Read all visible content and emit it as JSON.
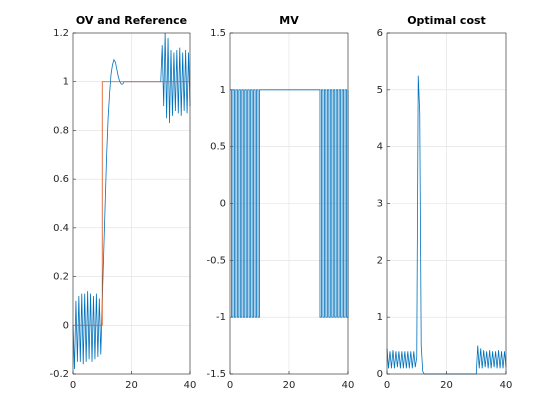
{
  "chart_data": [
    {
      "type": "line",
      "title": "OV and Reference",
      "xlim": [
        0,
        40
      ],
      "xticks": [
        0,
        20,
        40
      ],
      "ylim": [
        -0.2,
        1.2
      ],
      "yticks": [
        -0.2,
        0,
        0.2,
        0.4,
        0.6,
        0.8,
        1,
        1.2
      ],
      "grid": true,
      "series": [
        {
          "name": "OV",
          "color": "#0072bd",
          "x": [
            0,
            0.5,
            1,
            1.5,
            2,
            2.5,
            3,
            3.5,
            4,
            4.5,
            5,
            5.5,
            6,
            6.5,
            7,
            7.5,
            8,
            8.5,
            9,
            9.5,
            10,
            10.5,
            11,
            11.5,
            12,
            12.5,
            13,
            13.5,
            14,
            14.5,
            15,
            15.5,
            16,
            16.5,
            17,
            17.5,
            18,
            18.5,
            19,
            19.5,
            20,
            20.5,
            21,
            21.5,
            22,
            22.5,
            23,
            23.5,
            24,
            24.5,
            25,
            25.5,
            26,
            26.5,
            27,
            27.5,
            28,
            28.5,
            29,
            29.5,
            30,
            30.5,
            31,
            31.5,
            32,
            32.5,
            33,
            33.5,
            34,
            34.5,
            35,
            35.5,
            36,
            36.5,
            37,
            37.5,
            38,
            38.5,
            39,
            39.5,
            40
          ],
          "values": [
            0,
            -0.18,
            0.1,
            -0.15,
            0.12,
            -0.15,
            0.13,
            -0.16,
            0.13,
            -0.15,
            0.14,
            -0.14,
            0.13,
            -0.15,
            0.12,
            -0.14,
            0.13,
            -0.13,
            0.11,
            -0.12,
            0.1,
            0.3,
            0.5,
            0.7,
            0.85,
            0.95,
            1.03,
            1.07,
            1.09,
            1.08,
            1.05,
            1.02,
            1,
            0.99,
            0.99,
            1,
            1,
            1,
            1,
            1,
            1,
            1,
            1,
            1,
            1,
            1,
            1,
            1,
            1,
            1,
            1,
            1,
            1,
            1,
            1,
            1,
            1,
            1,
            1,
            1,
            1,
            1.15,
            0.9,
            1.2,
            0.85,
            1.18,
            0.83,
            1.13,
            0.86,
            1.12,
            0.88,
            1.13,
            0.87,
            1.14,
            0.86,
            1.12,
            0.88,
            1.13,
            0.87,
            1.12,
            0.9
          ]
        },
        {
          "name": "Reference",
          "color": "#d95319",
          "x": [
            0,
            10,
            10,
            40
          ],
          "values": [
            0,
            0,
            1,
            1
          ]
        }
      ]
    },
    {
      "type": "line",
      "title": "MV",
      "step": true,
      "xlim": [
        0,
        40
      ],
      "xticks": [
        0,
        20,
        40
      ],
      "ylim": [
        -1.5,
        1.5
      ],
      "yticks": [
        -1.5,
        -1,
        -0.5,
        0,
        0.5,
        1,
        1.5
      ],
      "grid": true,
      "series": [
        {
          "name": "MV",
          "color": "#0072bd",
          "x": [
            0,
            0.5,
            1,
            1.5,
            2,
            2.5,
            3,
            3.5,
            4,
            4.5,
            5,
            5.5,
            6,
            6.5,
            7,
            7.5,
            8,
            8.5,
            9,
            9.5,
            10,
            10.5,
            11,
            11.5,
            12,
            12.5,
            13,
            13.5,
            14,
            14.5,
            15,
            15.5,
            16,
            16.5,
            17,
            17.5,
            18,
            18.5,
            19,
            19.5,
            20,
            20.5,
            21,
            21.5,
            22,
            22.5,
            23,
            23.5,
            24,
            24.5,
            25,
            25.5,
            26,
            26.5,
            27,
            27.5,
            28,
            28.5,
            29,
            29.5,
            30,
            30.5,
            31,
            31.5,
            32,
            32.5,
            33,
            33.5,
            34,
            34.5,
            35,
            35.5,
            36,
            36.5,
            37,
            37.5,
            38,
            38.5,
            39,
            39.5,
            40
          ],
          "values": [
            1,
            -1,
            1,
            -1,
            1,
            -1,
            1,
            -1,
            1,
            -1,
            1,
            -1,
            1,
            -1,
            1,
            -1,
            1,
            -1,
            1,
            -1,
            1,
            1,
            1,
            1,
            1,
            1,
            1,
            1,
            1,
            1,
            1,
            1,
            1,
            1,
            1,
            1,
            1,
            1,
            1,
            1,
            1,
            1,
            1,
            1,
            1,
            1,
            1,
            1,
            1,
            1,
            1,
            1,
            1,
            1,
            1,
            1,
            1,
            1,
            1,
            1,
            1,
            -1,
            1,
            -1,
            1,
            -1,
            1,
            -1,
            1,
            -1,
            1,
            -1,
            1,
            -1,
            1,
            -1,
            1,
            -1,
            1,
            -1,
            1
          ]
        }
      ]
    },
    {
      "type": "line",
      "title": "Optimal cost",
      "xlim": [
        0,
        40
      ],
      "xticks": [
        0,
        20,
        40
      ],
      "ylim": [
        0,
        6
      ],
      "yticks": [
        0,
        1,
        2,
        3,
        4,
        5,
        6
      ],
      "grid": true,
      "series": [
        {
          "name": "Optimal cost",
          "color": "#0072bd",
          "x": [
            0,
            0.5,
            1,
            1.5,
            2,
            2.5,
            3,
            3.5,
            4,
            4.5,
            5,
            5.5,
            6,
            6.5,
            7,
            7.5,
            8,
            8.5,
            9,
            9.5,
            10,
            10.5,
            11,
            11.5,
            12,
            12.5,
            13,
            13.5,
            14,
            14.5,
            15,
            15.5,
            16,
            16.5,
            17,
            17.5,
            18,
            18.5,
            19,
            19.5,
            20,
            20.5,
            21,
            21.5,
            22,
            22.5,
            23,
            23.5,
            24,
            24.5,
            25,
            25.5,
            26,
            26.5,
            27,
            27.5,
            28,
            28.5,
            29,
            29.5,
            30,
            30.5,
            31,
            31.5,
            32,
            32.5,
            33,
            33.5,
            34,
            34.5,
            35,
            35.5,
            36,
            36.5,
            37,
            37.5,
            38,
            38.5,
            39,
            39.5,
            40
          ],
          "values": [
            0.45,
            0.1,
            0.4,
            0.1,
            0.42,
            0.1,
            0.4,
            0.12,
            0.4,
            0.1,
            0.4,
            0.1,
            0.4,
            0.1,
            0.4,
            0.1,
            0.4,
            0.1,
            0.4,
            0.12,
            0.3,
            5.25,
            4.6,
            0.5,
            0.05,
            0,
            0,
            0,
            0,
            0,
            0,
            0,
            0,
            0,
            0,
            0,
            0,
            0,
            0,
            0,
            0,
            0,
            0,
            0,
            0,
            0,
            0,
            0,
            0,
            0,
            0,
            0,
            0,
            0,
            0,
            0,
            0,
            0,
            0,
            0,
            0,
            0.5,
            0.1,
            0.45,
            0.1,
            0.42,
            0.12,
            0.4,
            0.1,
            0.42,
            0.1,
            0.4,
            0.12,
            0.4,
            0.1,
            0.42,
            0.1,
            0.4,
            0.1,
            0.4,
            0.12
          ]
        }
      ]
    }
  ]
}
